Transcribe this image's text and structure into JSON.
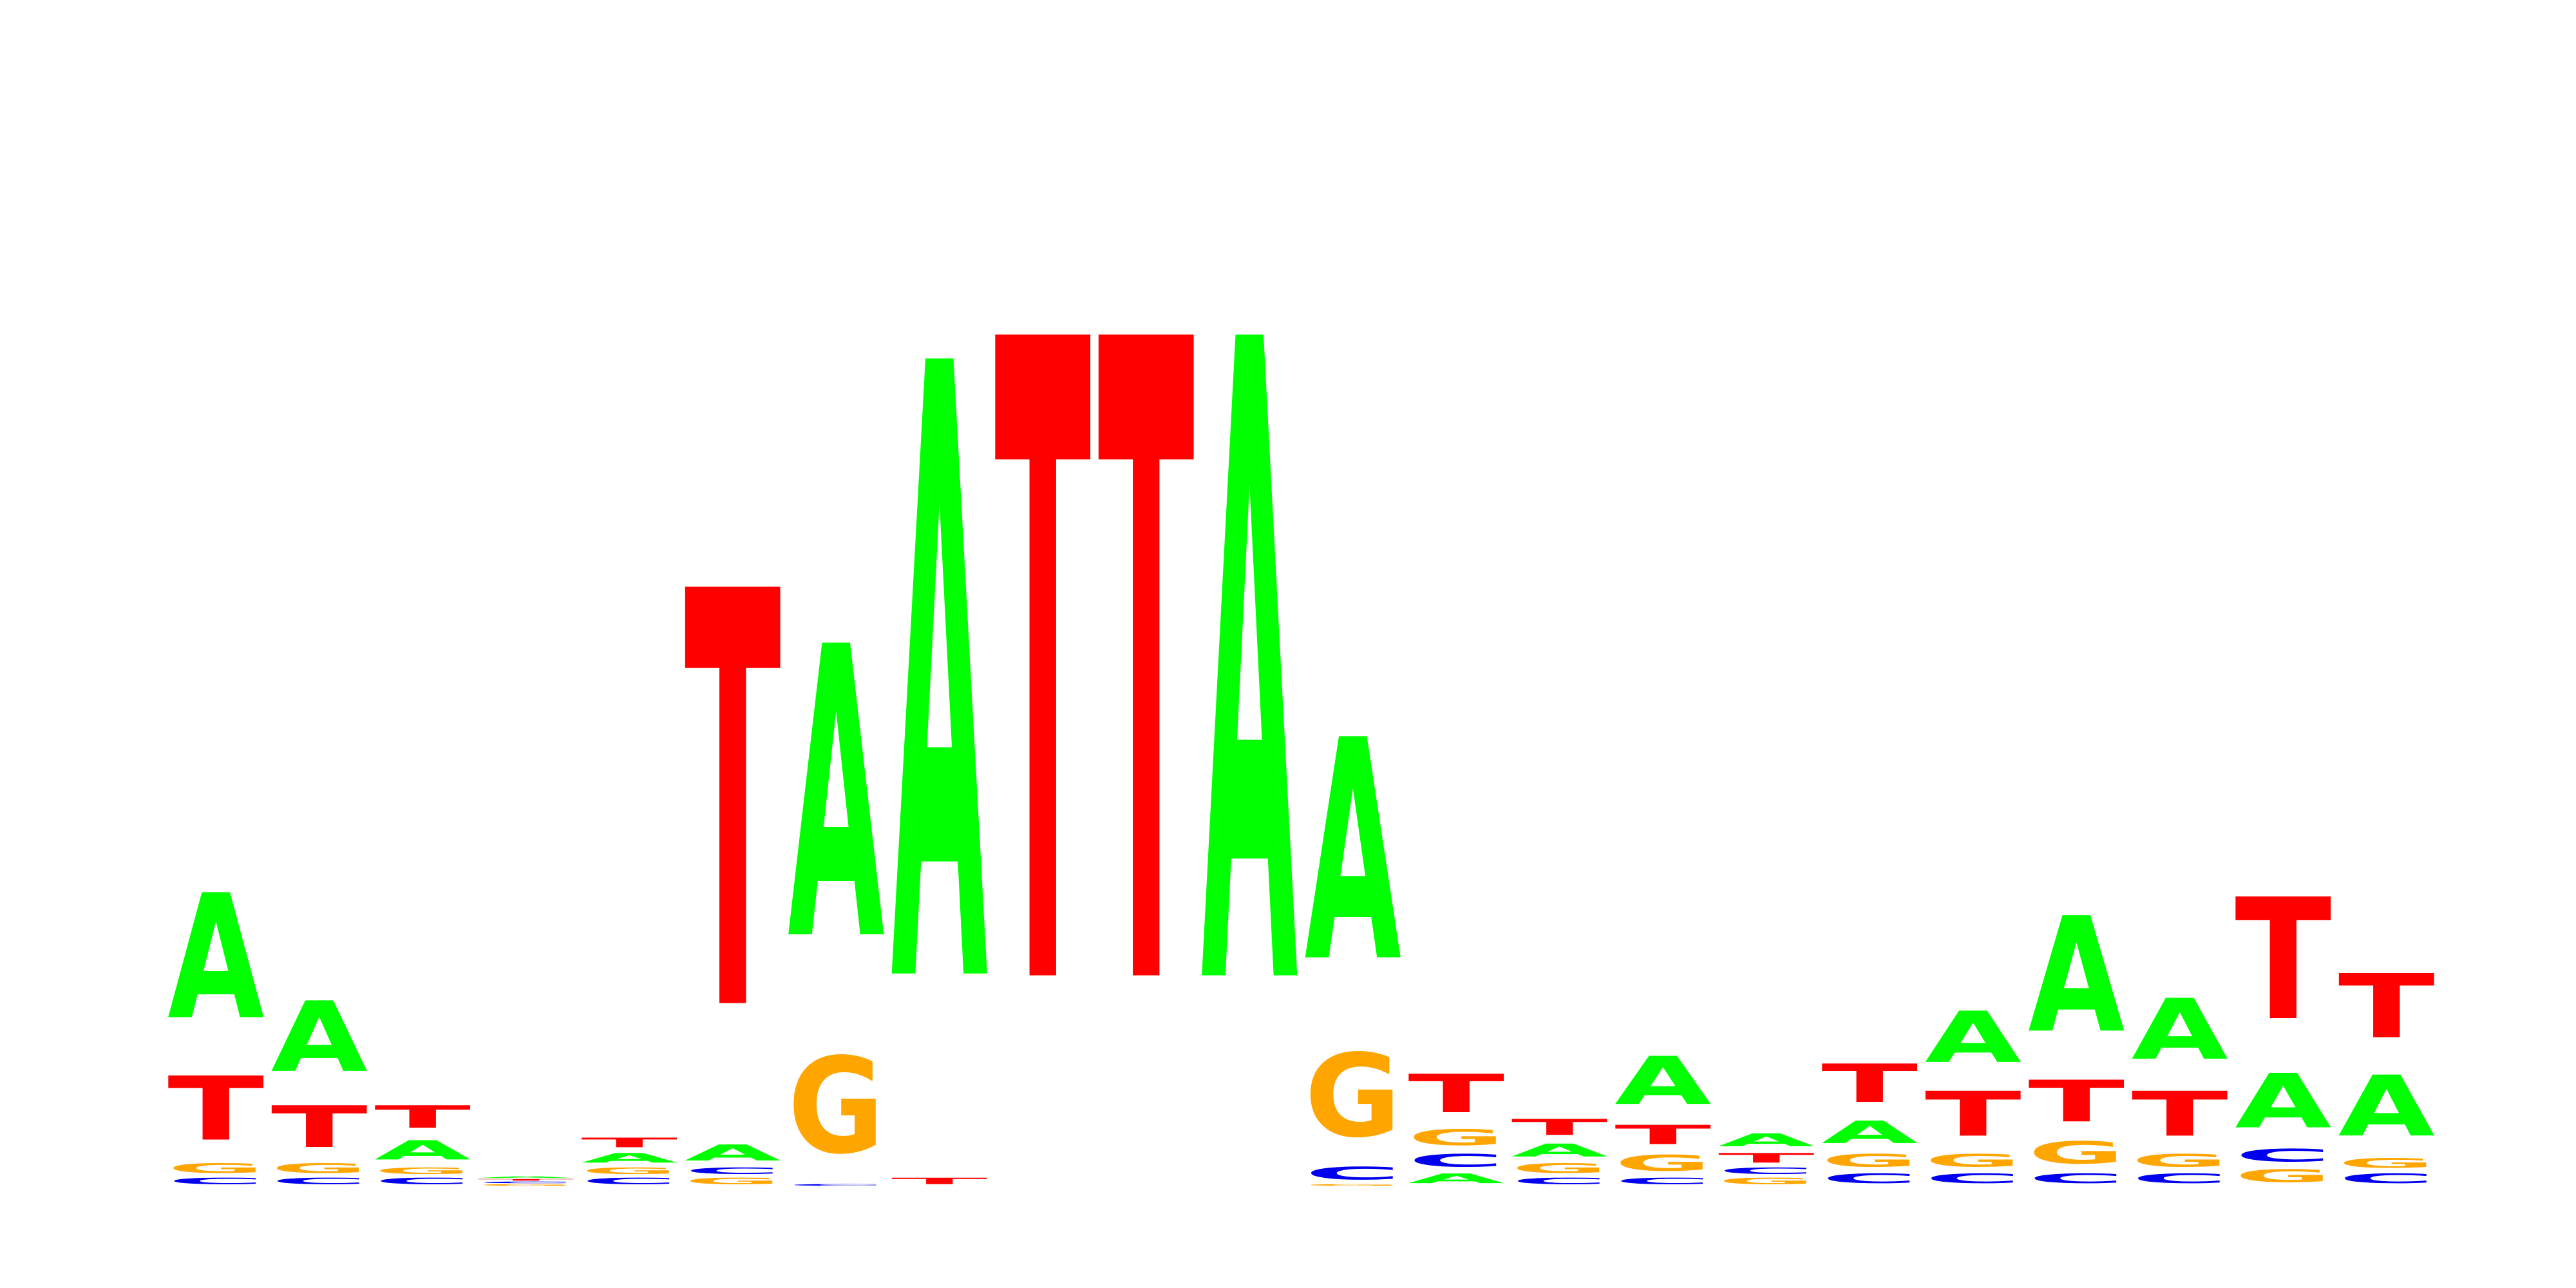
{
  "colors": {
    "A": "#00ff00",
    "C": "#0000ee",
    "G": "#ffa500",
    "T": "#ff0000"
  },
  "chart_data": {
    "type": "sequence-logo",
    "title": "",
    "xlabel": "",
    "ylabel": "",
    "alphabet": [
      "A",
      "C",
      "G",
      "T"
    ],
    "ylim": [
      0,
      2
    ],
    "positions": [
      [
        [
          "C",
          0.02
        ],
        [
          "G",
          0.03
        ],
        [
          "T",
          0.2
        ],
        [
          "A",
          0.39
        ]
      ],
      [
        [
          "C",
          0.02
        ],
        [
          "G",
          0.03
        ],
        [
          "T",
          0.13
        ],
        [
          "A",
          0.22
        ]
      ],
      [
        [
          "C",
          0.02
        ],
        [
          "G",
          0.02
        ],
        [
          "A",
          0.06
        ],
        [
          "T",
          0.07
        ]
      ],
      [
        [
          "G",
          0.005
        ],
        [
          "C",
          0.005
        ],
        [
          "T",
          0.005
        ],
        [
          "A",
          0.005
        ]
      ],
      [
        [
          "C",
          0.02
        ],
        [
          "G",
          0.02
        ],
        [
          "A",
          0.03
        ],
        [
          "T",
          0.03
        ]
      ],
      [
        [
          "G",
          0.02
        ],
        [
          "C",
          0.02
        ],
        [
          "A",
          0.05
        ],
        [
          "T",
          1.3
        ]
      ],
      [
        [
          "C",
          0.005
        ],
        [
          "G",
          0.3
        ],
        [
          "A",
          0.91
        ]
      ],
      [
        [
          "T",
          0.02
        ],
        [
          "A",
          1.92
        ]
      ],
      [
        [
          "T",
          2.0
        ]
      ],
      [
        [
          "T",
          2.0
        ]
      ],
      [
        [
          "A",
          2.0
        ]
      ],
      [
        [
          "G",
          0.005
        ],
        [
          "C",
          0.04
        ],
        [
          "G",
          0.26
        ],
        [
          "A",
          0.69
        ]
      ],
      [
        [
          "A",
          0.03
        ],
        [
          "C",
          0.04
        ],
        [
          "G",
          0.05
        ],
        [
          "T",
          0.12
        ]
      ],
      [
        [
          "C",
          0.02
        ],
        [
          "G",
          0.03
        ],
        [
          "A",
          0.04
        ],
        [
          "T",
          0.05
        ]
      ],
      [
        [
          "C",
          0.02
        ],
        [
          "G",
          0.05
        ],
        [
          "T",
          0.06
        ],
        [
          "A",
          0.15
        ]
      ],
      [
        [
          "G",
          0.02
        ],
        [
          "C",
          0.02
        ],
        [
          "T",
          0.03
        ],
        [
          "A",
          0.04
        ]
      ],
      [
        [
          "C",
          0.03
        ],
        [
          "G",
          0.04
        ],
        [
          "A",
          0.07
        ],
        [
          "T",
          0.12
        ]
      ],
      [
        [
          "C",
          0.03
        ],
        [
          "G",
          0.04
        ],
        [
          "T",
          0.14
        ],
        [
          "A",
          0.16
        ]
      ],
      [
        [
          "C",
          0.03
        ],
        [
          "G",
          0.07
        ],
        [
          "T",
          0.13
        ],
        [
          "A",
          0.36
        ]
      ],
      [
        [
          "C",
          0.03
        ],
        [
          "G",
          0.04
        ],
        [
          "T",
          0.14
        ],
        [
          "A",
          0.19
        ]
      ],
      [
        [
          "G",
          0.04
        ],
        [
          "C",
          0.04
        ],
        [
          "A",
          0.17
        ],
        [
          "T",
          0.38
        ]
      ],
      [
        [
          "C",
          0.03
        ],
        [
          "G",
          0.03
        ],
        [
          "A",
          0.19
        ],
        [
          "T",
          0.2
        ]
      ]
    ]
  }
}
